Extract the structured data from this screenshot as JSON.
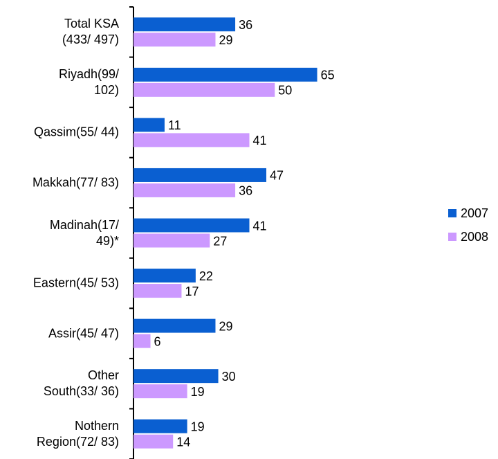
{
  "chart_data": {
    "type": "bar",
    "orientation": "horizontal",
    "categories": [
      "Total KSA\n(433/ 497)",
      "Riyadh(99/\n102)",
      "Qassim(55/ 44)",
      "Makkah(77/ 83)",
      "Madinah(17/\n49)*",
      "Eastern(45/ 53)",
      "Assir(45/ 47)",
      "Other\nSouth(33/ 36)",
      "Nothern\nRegion(72/ 83)"
    ],
    "series": [
      {
        "name": "2007",
        "color": "#0a5fd1",
        "values": [
          36,
          65,
          11,
          47,
          41,
          22,
          29,
          30,
          19
        ]
      },
      {
        "name": "2008",
        "color": "#cc99ff",
        "values": [
          29,
          50,
          41,
          36,
          27,
          17,
          6,
          19,
          14
        ]
      }
    ],
    "xlim": [
      0,
      70
    ],
    "legend": "right"
  }
}
